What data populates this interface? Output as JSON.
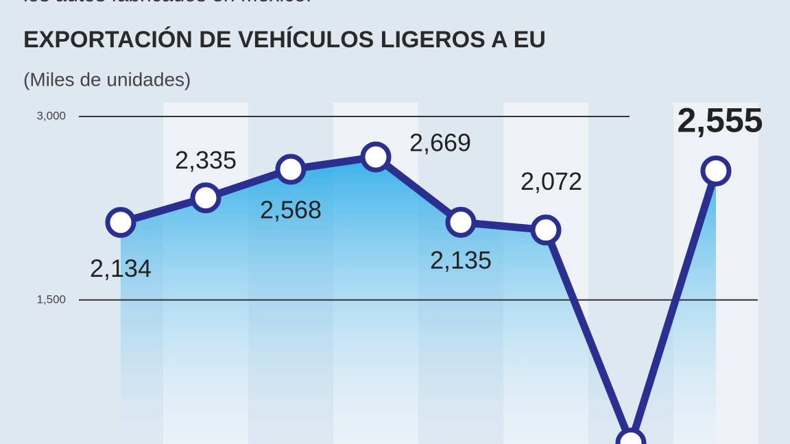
{
  "chart_data": {
    "type": "line",
    "pretitle": "los autos fabricados en México.",
    "title": "EXPORTACIÓN DE VEHÍCULOS LIGEROS A EU",
    "subtitle": "(Miles de unidades)",
    "categories": [
      null,
      null,
      null,
      null,
      null,
      null,
      null,
      null
    ],
    "values": [
      2134,
      2335,
      2568,
      2669,
      2135,
      2072,
      330,
      2555
    ],
    "value_labels": [
      "2,134",
      "2,335",
      "2,568",
      "2,669",
      "2,135",
      "2,072",
      null,
      "2,555"
    ],
    "color": "#2b2f8f",
    "ylim": [
      300,
      3000
    ],
    "yticks": [
      {
        "value": 1500,
        "label": "1,500"
      },
      {
        "value": 3000,
        "label": "3,000"
      }
    ],
    "grid": true
  }
}
